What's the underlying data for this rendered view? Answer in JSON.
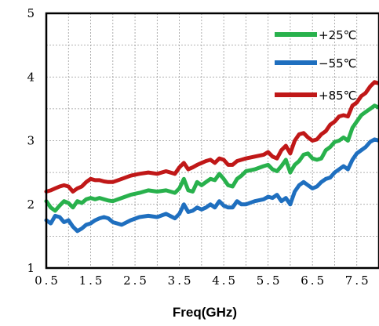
{
  "chart_data": {
    "type": "line",
    "title": "",
    "xlabel": "Freq(GHz)",
    "ylabel": "",
    "xlim": [
      0.5,
      8.0
    ],
    "ylim": [
      1,
      5
    ],
    "x_ticks": [
      "0.5",
      "1.5",
      "2.5",
      "3.5",
      "4.5",
      "5.5",
      "6.5",
      "7.5"
    ],
    "y_ticks": [
      "1",
      "2",
      "3",
      "4",
      "5"
    ],
    "grid": true,
    "legend_position": "top-right",
    "series": [
      {
        "name": "+25℃",
        "color": "#28b14c",
        "x": [
          0.5,
          0.6,
          0.7,
          0.8,
          0.9,
          1.0,
          1.1,
          1.2,
          1.3,
          1.4,
          1.5,
          1.6,
          1.7,
          1.8,
          1.9,
          2.0,
          2.2,
          2.4,
          2.6,
          2.8,
          3.0,
          3.2,
          3.4,
          3.5,
          3.6,
          3.7,
          3.8,
          3.9,
          4.0,
          4.1,
          4.2,
          4.3,
          4.4,
          4.5,
          4.6,
          4.7,
          4.8,
          4.9,
          5.0,
          5.2,
          5.4,
          5.5,
          5.6,
          5.7,
          5.8,
          5.9,
          6.0,
          6.1,
          6.2,
          6.3,
          6.4,
          6.5,
          6.6,
          6.7,
          6.8,
          6.9,
          7.0,
          7.1,
          7.2,
          7.3,
          7.4,
          7.5,
          7.6,
          7.7,
          7.8,
          7.9,
          8.0
        ],
        "y": [
          2.05,
          1.95,
          1.9,
          1.98,
          2.05,
          2.02,
          1.95,
          2.05,
          2.02,
          2.08,
          2.1,
          2.08,
          2.1,
          2.08,
          2.06,
          2.05,
          2.1,
          2.15,
          2.18,
          2.22,
          2.2,
          2.22,
          2.18,
          2.25,
          2.4,
          2.22,
          2.2,
          2.35,
          2.3,
          2.35,
          2.4,
          2.38,
          2.48,
          2.4,
          2.3,
          2.28,
          2.4,
          2.45,
          2.52,
          2.55,
          2.6,
          2.62,
          2.55,
          2.52,
          2.6,
          2.7,
          2.5,
          2.62,
          2.68,
          2.78,
          2.8,
          2.72,
          2.7,
          2.72,
          2.85,
          2.9,
          2.98,
          3.0,
          3.05,
          3.0,
          3.2,
          3.3,
          3.4,
          3.45,
          3.5,
          3.55,
          3.52
        ]
      },
      {
        "name": "−55℃",
        "color": "#1f6fbf",
        "x": [
          0.5,
          0.6,
          0.7,
          0.8,
          0.9,
          1.0,
          1.1,
          1.2,
          1.3,
          1.4,
          1.5,
          1.6,
          1.7,
          1.8,
          1.9,
          2.0,
          2.2,
          2.4,
          2.6,
          2.8,
          3.0,
          3.2,
          3.4,
          3.5,
          3.6,
          3.7,
          3.8,
          3.9,
          4.0,
          4.1,
          4.2,
          4.3,
          4.4,
          4.5,
          4.6,
          4.7,
          4.8,
          4.9,
          5.0,
          5.2,
          5.4,
          5.5,
          5.6,
          5.7,
          5.8,
          5.9,
          6.0,
          6.1,
          6.2,
          6.3,
          6.4,
          6.5,
          6.6,
          6.7,
          6.8,
          6.9,
          7.0,
          7.1,
          7.2,
          7.3,
          7.4,
          7.5,
          7.6,
          7.7,
          7.8,
          7.9,
          8.0
        ],
        "y": [
          1.75,
          1.7,
          1.82,
          1.8,
          1.72,
          1.75,
          1.65,
          1.58,
          1.62,
          1.68,
          1.7,
          1.75,
          1.78,
          1.8,
          1.78,
          1.72,
          1.68,
          1.75,
          1.8,
          1.82,
          1.8,
          1.85,
          1.78,
          1.85,
          2.0,
          1.88,
          1.9,
          1.95,
          1.92,
          1.95,
          2.0,
          1.95,
          2.05,
          1.98,
          1.95,
          1.95,
          2.05,
          2.0,
          2.0,
          2.05,
          2.08,
          2.12,
          2.1,
          2.15,
          2.05,
          2.1,
          2.0,
          2.2,
          2.3,
          2.35,
          2.3,
          2.25,
          2.28,
          2.35,
          2.4,
          2.42,
          2.5,
          2.55,
          2.6,
          2.55,
          2.7,
          2.8,
          2.85,
          2.9,
          2.98,
          3.02,
          3.0
        ]
      },
      {
        "name": "+85℃",
        "color": "#c01818",
        "x": [
          0.5,
          0.6,
          0.7,
          0.8,
          0.9,
          1.0,
          1.1,
          1.2,
          1.3,
          1.4,
          1.5,
          1.6,
          1.7,
          1.8,
          1.9,
          2.0,
          2.2,
          2.4,
          2.6,
          2.8,
          3.0,
          3.2,
          3.4,
          3.5,
          3.6,
          3.7,
          3.8,
          3.9,
          4.0,
          4.1,
          4.2,
          4.3,
          4.4,
          4.5,
          4.6,
          4.7,
          4.8,
          4.9,
          5.0,
          5.2,
          5.4,
          5.5,
          5.6,
          5.7,
          5.8,
          5.9,
          6.0,
          6.1,
          6.2,
          6.3,
          6.4,
          6.5,
          6.6,
          6.7,
          6.8,
          6.9,
          7.0,
          7.1,
          7.2,
          7.3,
          7.4,
          7.5,
          7.6,
          7.7,
          7.8,
          7.9,
          8.0
        ],
        "y": [
          2.2,
          2.22,
          2.25,
          2.28,
          2.3,
          2.28,
          2.2,
          2.25,
          2.28,
          2.35,
          2.4,
          2.38,
          2.38,
          2.36,
          2.35,
          2.35,
          2.4,
          2.45,
          2.48,
          2.5,
          2.48,
          2.52,
          2.48,
          2.58,
          2.65,
          2.55,
          2.58,
          2.62,
          2.65,
          2.68,
          2.7,
          2.65,
          2.72,
          2.7,
          2.62,
          2.62,
          2.68,
          2.7,
          2.72,
          2.75,
          2.78,
          2.82,
          2.75,
          2.72,
          2.85,
          2.92,
          2.8,
          3.0,
          3.1,
          3.12,
          3.05,
          3.0,
          3.02,
          3.1,
          3.15,
          3.25,
          3.3,
          3.38,
          3.4,
          3.38,
          3.55,
          3.6,
          3.7,
          3.75,
          3.85,
          3.92,
          3.9
        ]
      }
    ]
  }
}
